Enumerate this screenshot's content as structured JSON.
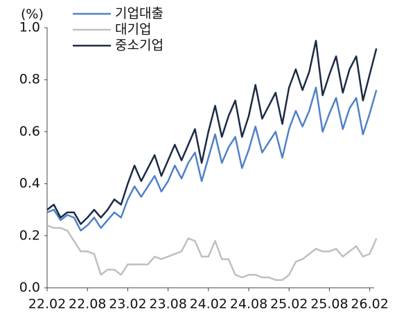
{
  "chart_data": {
    "type": "line",
    "y_label": "(%)",
    "categories": [
      "22.02",
      null,
      null,
      null,
      null,
      null,
      "22.08",
      null,
      null,
      null,
      null,
      null,
      "23.02",
      null,
      null,
      null,
      null,
      null,
      "23.08",
      null,
      null,
      null,
      null,
      null,
      "24.02",
      null,
      null,
      null,
      null,
      null,
      "24.08",
      null,
      null,
      null,
      null,
      null,
      "25.02",
      null,
      null,
      null,
      null,
      null,
      "25.08",
      null,
      null,
      null,
      null,
      null,
      "26.02",
      null
    ],
    "series": [
      {
        "name": "기업대출",
        "color": "#4f81c7",
        "values": [
          0.29,
          0.3,
          0.26,
          0.28,
          0.27,
          0.22,
          0.24,
          0.27,
          0.23,
          0.26,
          0.29,
          0.27,
          0.34,
          0.39,
          0.35,
          0.39,
          0.43,
          0.37,
          0.41,
          0.47,
          0.42,
          0.48,
          0.52,
          0.41,
          0.5,
          0.59,
          0.48,
          0.54,
          0.58,
          0.46,
          0.53,
          0.62,
          0.52,
          0.56,
          0.6,
          0.5,
          0.61,
          0.68,
          0.62,
          0.68,
          0.77,
          0.6,
          0.67,
          0.73,
          0.61,
          0.69,
          0.73,
          0.59,
          0.67,
          0.76
        ]
      },
      {
        "name": "대기업",
        "color": "#bfbfbf",
        "values": [
          0.24,
          0.23,
          0.23,
          0.22,
          0.18,
          0.14,
          0.14,
          0.13,
          0.05,
          0.07,
          0.07,
          0.05,
          0.09,
          0.09,
          0.09,
          0.09,
          0.12,
          0.11,
          0.12,
          0.13,
          0.14,
          0.19,
          0.18,
          0.12,
          0.12,
          0.18,
          0.11,
          0.11,
          0.05,
          0.04,
          0.05,
          0.05,
          0.04,
          0.04,
          0.03,
          0.03,
          0.05,
          0.1,
          0.11,
          0.13,
          0.15,
          0.14,
          0.14,
          0.15,
          0.12,
          0.14,
          0.16,
          0.12,
          0.13,
          0.19
        ]
      },
      {
        "name": "중소기업",
        "color": "#1b2a44",
        "values": [
          0.3,
          0.32,
          0.27,
          0.29,
          0.29,
          0.245,
          0.27,
          0.3,
          0.27,
          0.3,
          0.34,
          0.32,
          0.4,
          0.47,
          0.41,
          0.46,
          0.51,
          0.43,
          0.49,
          0.55,
          0.49,
          0.55,
          0.61,
          0.48,
          0.6,
          0.7,
          0.58,
          0.66,
          0.72,
          0.58,
          0.66,
          0.78,
          0.65,
          0.7,
          0.75,
          0.63,
          0.77,
          0.84,
          0.76,
          0.83,
          0.95,
          0.74,
          0.82,
          0.89,
          0.75,
          0.84,
          0.89,
          0.72,
          0.82,
          0.92
        ]
      }
    ],
    "ylim": [
      0,
      1
    ],
    "yticks": [
      {
        "value": 0,
        "label": "0.0"
      },
      {
        "value": 0.2,
        "label": "0.2"
      },
      {
        "value": 0.4,
        "label": "0.4"
      },
      {
        "value": 0.6,
        "label": "0.6"
      },
      {
        "value": 0.8,
        "label": "0.8"
      },
      {
        "value": 1,
        "label": "1.0"
      }
    ]
  }
}
